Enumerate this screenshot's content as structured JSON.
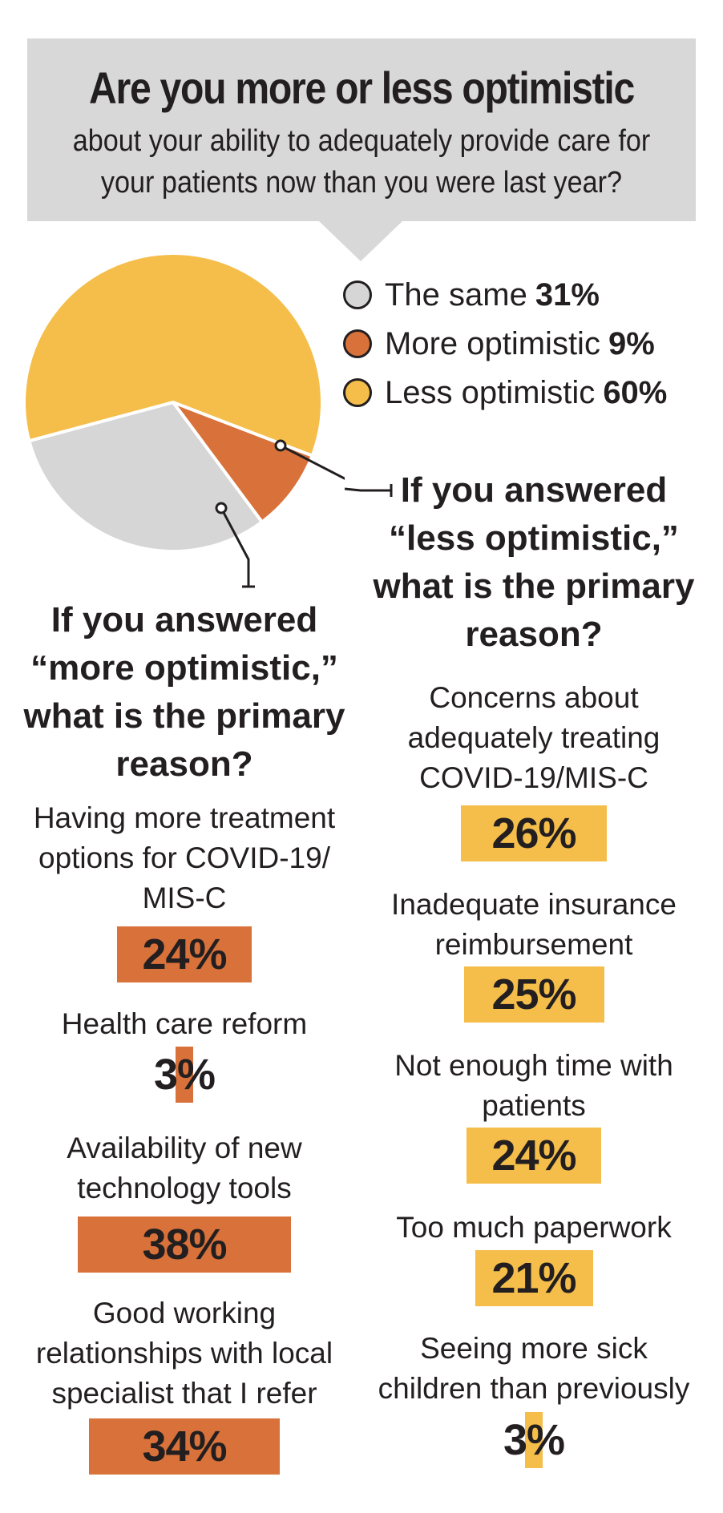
{
  "header": {
    "title": "Are you more or less optimistic",
    "subtitle_line1": "about your ability to adequately provide care for",
    "subtitle_line2": "your patients now than you were last year?"
  },
  "colors": {
    "same": "#d6d6d6",
    "more": "#d9723a",
    "less": "#f5be4a",
    "header_bg": "#d8d8d8"
  },
  "legend": [
    {
      "label": "The same",
      "value": "31%"
    },
    {
      "label": "More optimistic",
      "value": "9%"
    },
    {
      "label": "Less optimistic",
      "value": "60%"
    }
  ],
  "less_section": {
    "title_lines": [
      "If you answered",
      "“less optimistic,”",
      "what is the primary",
      "reason?"
    ],
    "items": [
      {
        "label_lines": [
          "Concerns about",
          "adequately treating",
          "COVID-19/MIS-C"
        ],
        "value_label": "26%"
      },
      {
        "label_lines": [
          "Inadequate insurance",
          "reimbursement"
        ],
        "value_label": "25%"
      },
      {
        "label_lines": [
          "Not enough time with",
          "patients"
        ],
        "value_label": "24%"
      },
      {
        "label_lines": [
          "Too much paperwork"
        ],
        "value_label": "21%"
      },
      {
        "label_lines": [
          "Seeing more sick",
          "children than previously"
        ],
        "value_label": "3%"
      }
    ]
  },
  "more_section": {
    "title_lines": [
      "If you answered",
      "“more optimistic,”",
      "what is the primary",
      "reason?"
    ],
    "items": [
      {
        "label_lines": [
          "Having more treatment",
          "options for COVID-19/",
          "MIS-C"
        ],
        "value_label": "24%"
      },
      {
        "label_lines": [
          "Health care reform"
        ],
        "value_label": "3%"
      },
      {
        "label_lines": [
          "Availability of new",
          "technology tools"
        ],
        "value_label": "38%"
      },
      {
        "label_lines": [
          "Good working",
          "relationships with local",
          "specialist that I refer"
        ],
        "value_label": "34%"
      }
    ]
  },
  "chart_data": [
    {
      "type": "pie",
      "title": "Are you more or less optimistic about your ability to adequately provide care for your patients now than you were last year?",
      "categories": [
        "The same",
        "More optimistic",
        "Less optimistic"
      ],
      "values": [
        31,
        9,
        60
      ],
      "legend": "right"
    },
    {
      "type": "bar",
      "title": "If you answered “less optimistic,” what is the primary reason?",
      "categories": [
        "Concerns about adequately treating COVID-19/MIS-C",
        "Inadequate insurance reimbursement",
        "Not enough time with patients",
        "Too much paperwork",
        "Seeing more sick children than previously"
      ],
      "values": [
        26,
        25,
        24,
        21,
        3
      ]
    },
    {
      "type": "bar",
      "title": "If you answered “more optimistic,” what is the primary reason?",
      "categories": [
        "Having more treatment options for COVID-19/MIS-C",
        "Health care reform",
        "Availability of new technology tools",
        "Good working relationships with local specialist that I refer"
      ],
      "values": [
        24,
        3,
        38,
        34
      ]
    }
  ]
}
